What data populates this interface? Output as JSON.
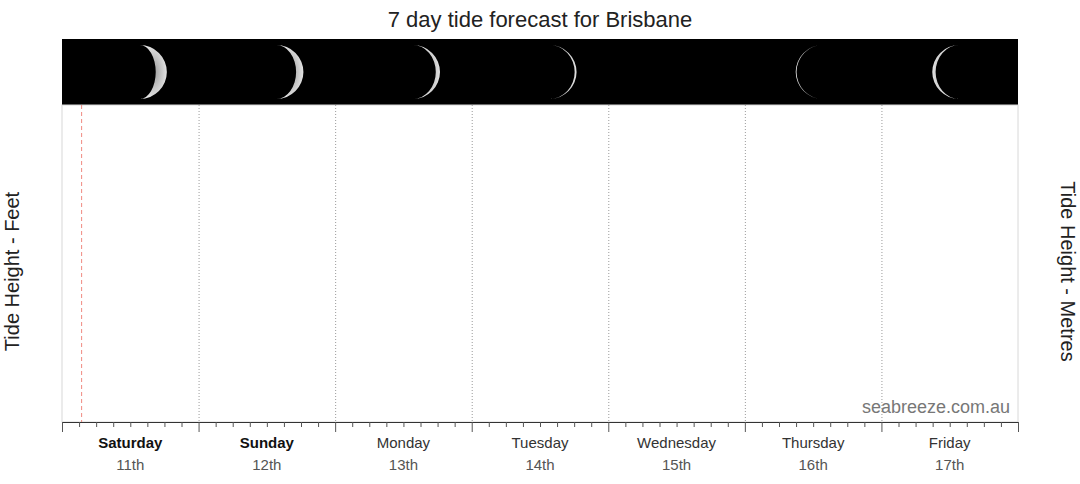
{
  "chart_data": {
    "type": "line",
    "title": "7 day tide forecast for Brisbane",
    "y_label": "Tide Height - Feet",
    "y2_label": "Tide Height - Metres",
    "categories": [
      "Saturday",
      "Sunday",
      "Monday",
      "Tuesday",
      "Wednesday",
      "Thursday",
      "Friday"
    ],
    "dates": [
      "11th",
      "12th",
      "13th",
      "14th",
      "15th",
      "16th",
      "17th"
    ],
    "moon_phase": [
      0.85,
      0.88,
      0.91,
      0.94,
      0.0,
      0.04,
      0.08
    ],
    "current_time": 0.14,
    "watermark": "seabreeze.com.au",
    "series": [],
    "tick_labels": "x"
  }
}
